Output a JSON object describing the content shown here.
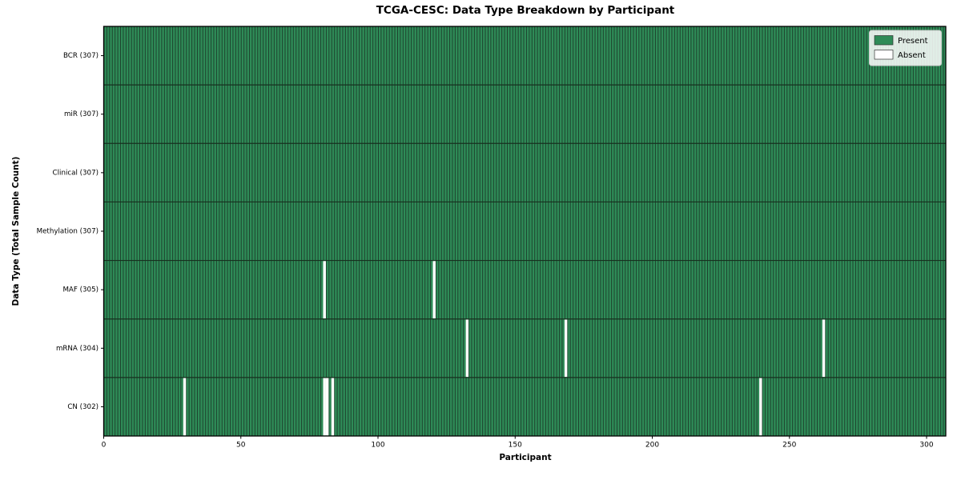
{
  "title": "TCGA-CESC: Data Type Breakdown by Participant",
  "chart_data": {
    "type": "heatmap",
    "title": "TCGA-CESC: Data Type Breakdown by Participant",
    "xlabel": "Participant",
    "ylabel": "Data Type (Total Sample Count)",
    "n_participants": 307,
    "xlim": [
      0,
      307
    ],
    "xticks": [
      "0",
      "50",
      "100",
      "150",
      "200",
      "250",
      "300"
    ],
    "xtick_values": [
      0,
      50,
      100,
      150,
      200,
      250,
      300
    ],
    "rows": [
      {
        "label": "BCR (307)",
        "name": "BCR",
        "total": 307,
        "absent_participants": []
      },
      {
        "label": "miR (307)",
        "name": "miR",
        "total": 307,
        "absent_participants": []
      },
      {
        "label": "Clinical (307)",
        "name": "Clinical",
        "total": 307,
        "absent_participants": []
      },
      {
        "label": "Methylation (307)",
        "name": "Methylation",
        "total": 307,
        "absent_participants": []
      },
      {
        "label": "MAF (305)",
        "name": "MAF",
        "total": 305,
        "absent_participants": [
          80,
          120
        ]
      },
      {
        "label": "mRNA (304)",
        "name": "mRNA",
        "total": 304,
        "absent_participants": [
          132,
          168,
          262
        ]
      },
      {
        "label": "CN (302)",
        "name": "CN",
        "total": 302,
        "absent_participants": [
          29,
          80,
          81,
          83,
          239
        ]
      }
    ],
    "legend": [
      {
        "label": "Present",
        "color": "#2e8b57"
      },
      {
        "label": "Absent",
        "color": "#ffffff"
      }
    ],
    "legend_position": "upper right",
    "grid": false,
    "colors": {
      "present": "#2e8b57",
      "absent": "#ffffff",
      "bar_edge": "#1c3b29",
      "row_divider": "#17301f",
      "axis": "#000000",
      "legend_border": "#cccccc"
    }
  }
}
